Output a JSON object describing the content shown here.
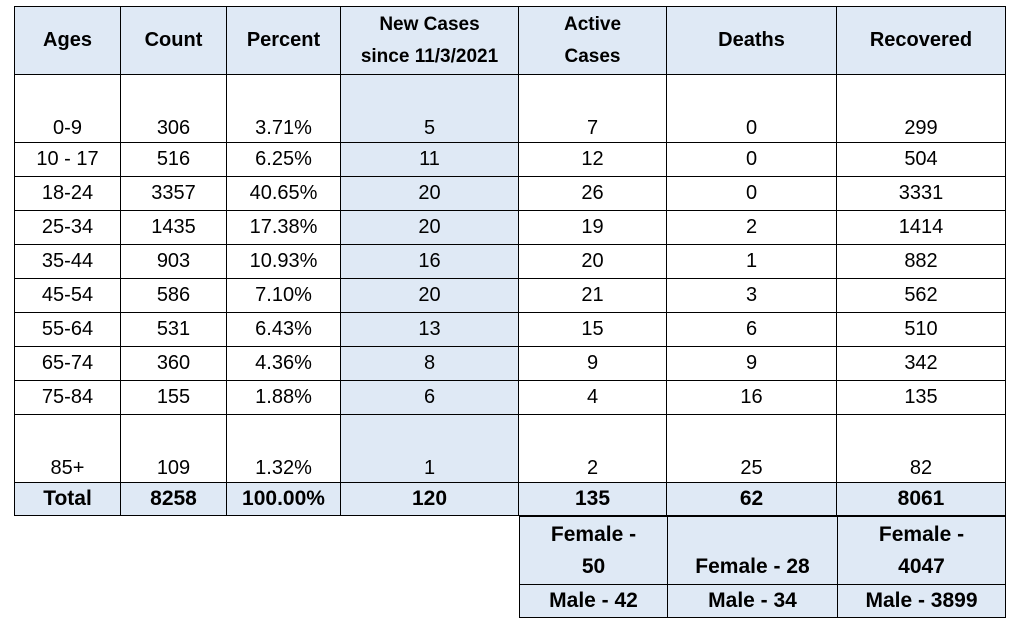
{
  "headers": {
    "ages": "Ages",
    "count": "Count",
    "percent": "Percent",
    "new_cases_line1": "New Cases",
    "new_cases_line2": "since 11/3/2021",
    "active_line1": "Active",
    "active_line2": "Cases",
    "deaths": "Deaths",
    "recovered": "Recovered"
  },
  "rows": [
    {
      "age": "0-9",
      "count": "306",
      "percent": "3.71%",
      "new_cases": "5",
      "active": "7",
      "deaths": "0",
      "recovered": "299"
    },
    {
      "age": "10 - 17",
      "count": "516",
      "percent": "6.25%",
      "new_cases": "11",
      "active": "12",
      "deaths": "0",
      "recovered": "504"
    },
    {
      "age": "18-24",
      "count": "3357",
      "percent": "40.65%",
      "new_cases": "20",
      "active": "26",
      "deaths": "0",
      "recovered": "3331"
    },
    {
      "age": "25-34",
      "count": "1435",
      "percent": "17.38%",
      "new_cases": "20",
      "active": "19",
      "deaths": "2",
      "recovered": "1414"
    },
    {
      "age": "35-44",
      "count": "903",
      "percent": "10.93%",
      "new_cases": "16",
      "active": "20",
      "deaths": "1",
      "recovered": "882"
    },
    {
      "age": "45-54",
      "count": "586",
      "percent": "7.10%",
      "new_cases": "20",
      "active": "21",
      "deaths": "3",
      "recovered": "562"
    },
    {
      "age": "55-64",
      "count": "531",
      "percent": "6.43%",
      "new_cases": "13",
      "active": "15",
      "deaths": "6",
      "recovered": "510"
    },
    {
      "age": "65-74",
      "count": "360",
      "percent": "4.36%",
      "new_cases": "8",
      "active": "9",
      "deaths": "9",
      "recovered": "342"
    },
    {
      "age": "75-84",
      "count": "155",
      "percent": "1.88%",
      "new_cases": "6",
      "active": "4",
      "deaths": "16",
      "recovered": "135"
    },
    {
      "age": "85+",
      "count": "109",
      "percent": "1.32%",
      "new_cases": "1",
      "active": "2",
      "deaths": "25",
      "recovered": "82"
    }
  ],
  "total": {
    "label": "Total",
    "count": "8258",
    "percent": "100.00%",
    "new_cases": "120",
    "active": "135",
    "deaths": "62",
    "recovered": "8061"
  },
  "breakdown": {
    "active_female_line1": "Female -",
    "active_female_line2": "50",
    "deaths_female": "Female - 28",
    "recovered_female_line1": "Female -",
    "recovered_female_line2": "4047",
    "active_male": "Male - 42",
    "deaths_male": "Male - 34",
    "recovered_male": "Male - 3899"
  },
  "colors": {
    "header_bg": "#dfe9f5",
    "border": "#000000"
  }
}
